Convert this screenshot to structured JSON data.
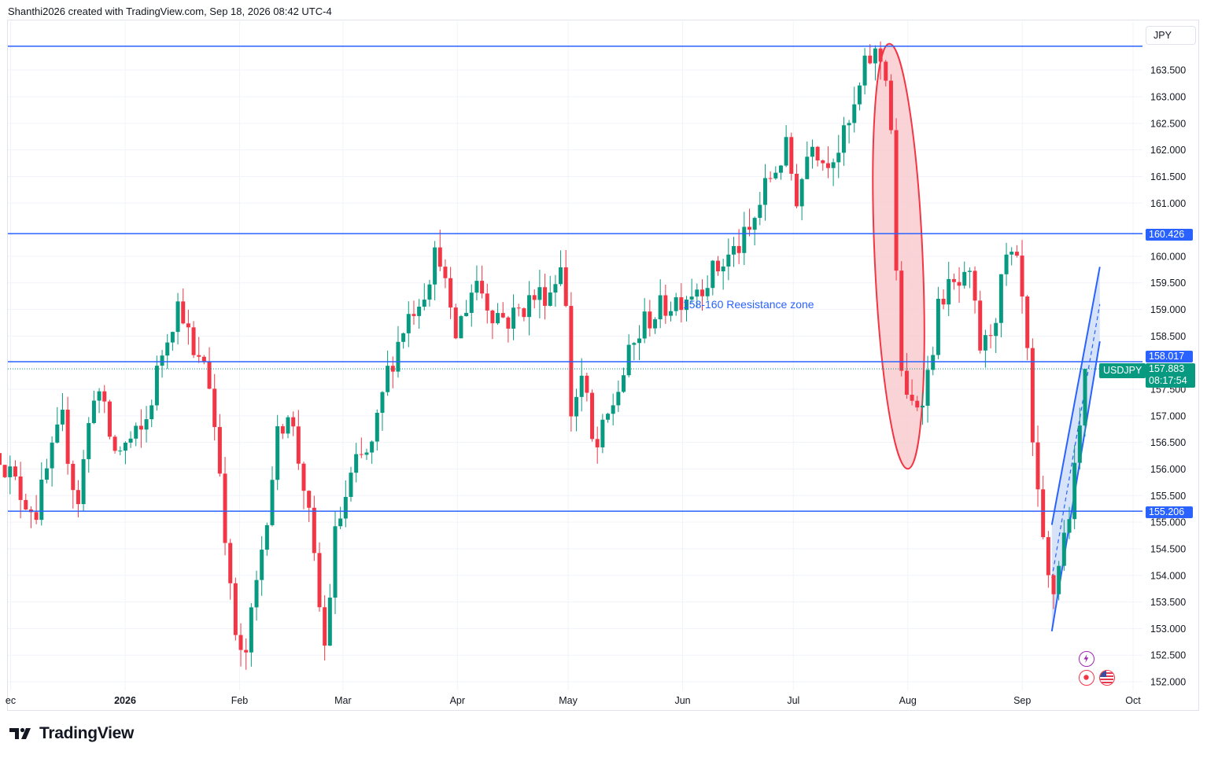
{
  "header": {
    "text": "Shanthi2026 created with TradingView.com, Sep 18, 2026 08:42 UTC-4"
  },
  "currency_button": {
    "label": "JPY"
  },
  "symbol_badge": {
    "label": "USDJPY"
  },
  "current_price": {
    "value": "157.883",
    "countdown": "08:17:54"
  },
  "annotation": {
    "text": "158-160 Reesistance zone"
  },
  "footer": {
    "brand": "TradingView"
  },
  "colors": {
    "up": "#089981",
    "down": "#f23645",
    "line": "#2962ff",
    "ellipse_fill": "#f8c8cc",
    "ellipse_stroke": "#f23645",
    "channel_fill": "#c9d9f5",
    "grid": "#f0f3fa"
  },
  "events": {
    "icons": [
      "lightning-icon",
      "record-icon",
      "us-flag-icon"
    ]
  },
  "chart_data": {
    "type": "candlestick",
    "symbol": "USDJPY",
    "x_axis": {
      "ticks": [
        {
          "label": "ec",
          "date": "2025-12-01"
        },
        {
          "label": "2026",
          "date": "2026-01-01",
          "bold": true
        },
        {
          "label": "Feb",
          "date": "2026-02-01"
        },
        {
          "label": "Mar",
          "date": "2026-03-01"
        },
        {
          "label": "Apr",
          "date": "2026-04-01"
        },
        {
          "label": "May",
          "date": "2026-05-01"
        },
        {
          "label": "Jun",
          "date": "2026-06-01"
        },
        {
          "label": "Jul",
          "date": "2026-07-01"
        },
        {
          "label": "Aug",
          "date": "2026-08-01"
        },
        {
          "label": "Sep",
          "date": "2026-09-01"
        },
        {
          "label": "Oct",
          "date": "2026-10-01"
        }
      ]
    },
    "y_axis": {
      "ticks": [
        "163.500",
        "163.000",
        "162.500",
        "162.000",
        "161.500",
        "161.000",
        "160.000",
        "159.500",
        "159.000",
        "158.500",
        "157.500",
        "157.000",
        "156.500",
        "156.000",
        "155.500",
        "155.000",
        "154.500",
        "154.000",
        "153.500",
        "153.000",
        "152.500",
        "152.000"
      ],
      "range": [
        151.98,
        164.6
      ]
    },
    "price_lines": [
      {
        "price": 163.95,
        "label": ""
      },
      {
        "price": 160.426,
        "label": "160.426"
      },
      {
        "price": 158.017,
        "label": "158.017"
      },
      {
        "price": 155.206,
        "label": "155.206"
      }
    ],
    "current_price": 157.883,
    "closes": [
      {
        "date": "2025-11-28",
        "close": 156.3
      },
      {
        "date": "2025-12-03",
        "close": 155.6
      },
      {
        "date": "2025-12-08",
        "close": 155.2
      },
      {
        "date": "2025-12-11",
        "close": 156.0
      },
      {
        "date": "2025-12-15",
        "close": 156.9
      },
      {
        "date": "2025-12-19",
        "close": 155.3
      },
      {
        "date": "2025-12-24",
        "close": 157.7
      },
      {
        "date": "2025-12-29",
        "close": 156.3
      },
      {
        "date": "2026-01-06",
        "close": 156.7
      },
      {
        "date": "2026-01-12",
        "close": 158.5
      },
      {
        "date": "2026-01-16",
        "close": 159.2
      },
      {
        "date": "2026-01-20",
        "close": 157.9
      },
      {
        "date": "2026-01-23",
        "close": 158.1
      },
      {
        "date": "2026-01-27",
        "close": 155.8
      },
      {
        "date": "2026-01-30",
        "close": 153.2
      },
      {
        "date": "2026-02-02",
        "close": 152.2
      },
      {
        "date": "2026-02-06",
        "close": 154.0
      },
      {
        "date": "2026-02-11",
        "close": 156.5
      },
      {
        "date": "2026-02-14",
        "close": 157.2
      },
      {
        "date": "2026-02-19",
        "close": 155.5
      },
      {
        "date": "2026-02-24",
        "close": 152.6
      },
      {
        "date": "2026-02-27",
        "close": 154.8
      },
      {
        "date": "2026-03-04",
        "close": 156.0
      },
      {
        "date": "2026-03-09",
        "close": 156.4
      },
      {
        "date": "2026-03-13",
        "close": 157.8
      },
      {
        "date": "2026-03-18",
        "close": 158.8
      },
      {
        "date": "2026-03-23",
        "close": 159.4
      },
      {
        "date": "2026-03-27",
        "close": 160.2
      },
      {
        "date": "2026-03-31",
        "close": 158.4
      },
      {
        "date": "2026-04-06",
        "close": 159.6
      },
      {
        "date": "2026-04-10",
        "close": 159.0
      },
      {
        "date": "2026-04-15",
        "close": 158.8
      },
      {
        "date": "2026-04-21",
        "close": 159.2
      },
      {
        "date": "2026-04-27",
        "close": 159.4
      },
      {
        "date": "2026-04-30",
        "close": 160.3
      },
      {
        "date": "2026-05-01",
        "close": 156.9
      },
      {
        "date": "2026-05-05",
        "close": 157.8
      },
      {
        "date": "2026-05-08",
        "close": 156.2
      },
      {
        "date": "2026-05-12",
        "close": 157.0
      },
      {
        "date": "2026-05-18",
        "close": 158.2
      },
      {
        "date": "2026-05-22",
        "close": 158.8
      },
      {
        "date": "2026-05-28",
        "close": 159.1
      },
      {
        "date": "2026-06-02",
        "close": 159.3
      },
      {
        "date": "2026-06-08",
        "close": 159.6
      },
      {
        "date": "2026-06-15",
        "close": 160.1
      },
      {
        "date": "2026-06-19",
        "close": 160.4
      },
      {
        "date": "2026-06-24",
        "close": 161.4
      },
      {
        "date": "2026-06-29",
        "close": 162.0
      },
      {
        "date": "2026-07-02",
        "close": 161.1
      },
      {
        "date": "2026-07-06",
        "close": 162.3
      },
      {
        "date": "2026-07-09",
        "close": 161.8
      },
      {
        "date": "2026-07-14",
        "close": 162.1
      },
      {
        "date": "2026-07-17",
        "close": 162.6
      },
      {
        "date": "2026-07-21",
        "close": 163.7
      },
      {
        "date": "2026-07-24",
        "close": 163.8
      },
      {
        "date": "2026-07-27",
        "close": 163.3
      },
      {
        "date": "2026-07-29",
        "close": 159.3
      },
      {
        "date": "2026-07-31",
        "close": 157.2
      },
      {
        "date": "2026-08-03",
        "close": 157.2
      },
      {
        "date": "2026-08-06",
        "close": 157.6
      },
      {
        "date": "2026-08-10",
        "close": 159.3
      },
      {
        "date": "2026-08-14",
        "close": 159.4
      },
      {
        "date": "2026-08-18",
        "close": 159.5
      },
      {
        "date": "2026-08-21",
        "close": 158.1
      },
      {
        "date": "2026-08-25",
        "close": 159.0
      },
      {
        "date": "2026-08-28",
        "close": 160.0
      },
      {
        "date": "2026-08-31",
        "close": 159.7
      },
      {
        "date": "2026-09-02",
        "close": 158.5
      },
      {
        "date": "2026-09-04",
        "close": 156.1
      },
      {
        "date": "2026-09-07",
        "close": 154.3
      },
      {
        "date": "2026-09-09",
        "close": 153.5
      },
      {
        "date": "2026-09-11",
        "close": 154.3
      },
      {
        "date": "2026-09-14",
        "close": 155.3
      },
      {
        "date": "2026-09-16",
        "close": 156.3
      },
      {
        "date": "2026-09-18",
        "close": 157.883
      }
    ],
    "annotations": {
      "text": {
        "label": "158-160 Reesistance zone",
        "date": "2026-06-15",
        "price": 159.1
      },
      "ellipse": {
        "x1": "2026-07-23",
        "x2": "2026-08-05",
        "y_top": 164.0,
        "y_bottom": 156.0
      },
      "channel": {
        "lower": {
          "from": {
            "date": "2026-09-09",
            "price": 152.95
          },
          "to": {
            "date": "2026-09-22",
            "price": 158.4
          }
        },
        "upper": {
          "from": {
            "date": "2026-09-09",
            "price": 154.95
          },
          "to": {
            "date": "2026-09-22",
            "price": 159.8
          }
        }
      }
    }
  }
}
